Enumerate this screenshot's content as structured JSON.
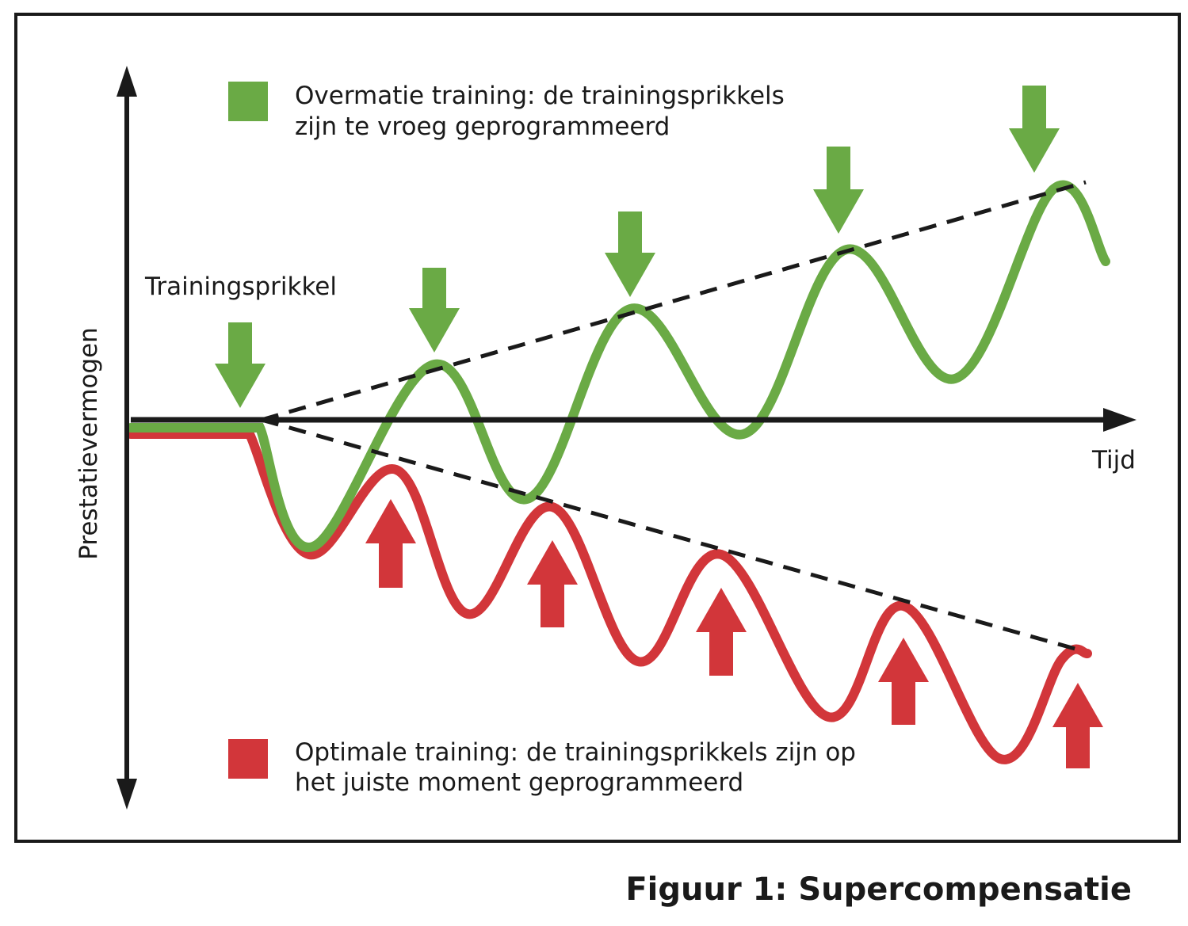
{
  "figure": {
    "caption": "Figuur 1: Supercompensatie",
    "y_axis_label": "Prestatievermogen",
    "x_axis_label": "Tijd",
    "annotation": "Trainingsprikkel",
    "legend": [
      {
        "lines": [
          "Overmatie training: de trainingsprikkels",
          "zijn te vroeg geprogrammeerd"
        ]
      },
      {
        "lines": [
          "Optimale training: de trainingsprikkels zijn op",
          "het juiste moment geprogrammeerd"
        ]
      }
    ]
  }
}
